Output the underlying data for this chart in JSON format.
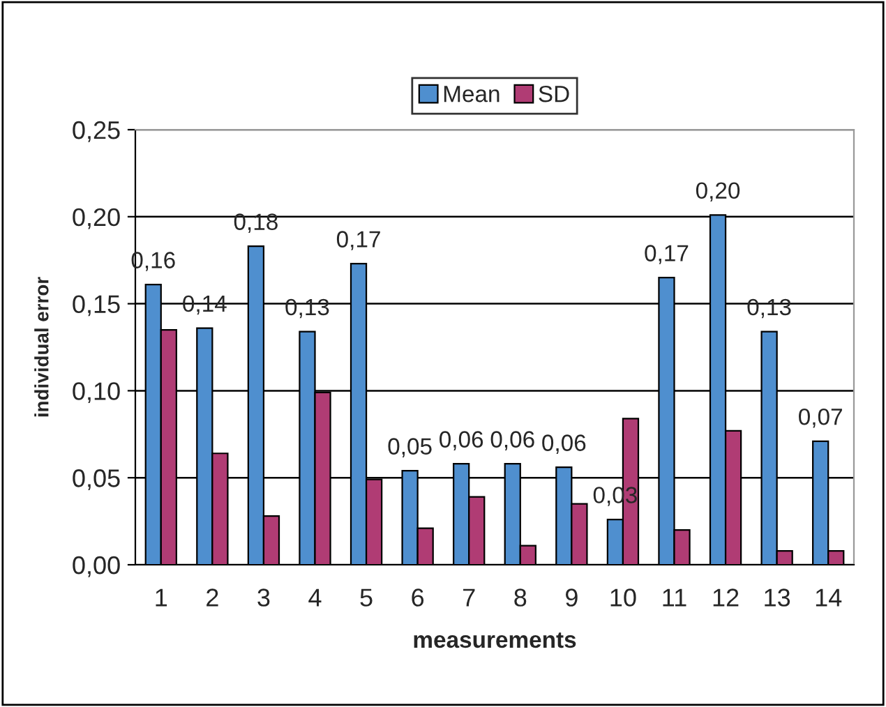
{
  "chart_data": {
    "type": "bar",
    "xlabel": "measurements",
    "ylabel": "individual error",
    "categories": [
      "1",
      "2",
      "3",
      "4",
      "5",
      "6",
      "7",
      "8",
      "9",
      "10",
      "11",
      "12",
      "13",
      "14"
    ],
    "series": [
      {
        "name": "Mean",
        "color": "#4f8fcf",
        "values": [
          0.161,
          0.136,
          0.183,
          0.134,
          0.173,
          0.054,
          0.058,
          0.058,
          0.056,
          0.026,
          0.165,
          0.201,
          0.134,
          0.071
        ],
        "value_labels": [
          "0,16",
          "0,14",
          "0,18",
          "0,13",
          "0,17",
          "0,05",
          "0,06",
          "0,06",
          "0,06",
          "0,03",
          "0,17",
          "0,20",
          "0,13",
          "0,07"
        ]
      },
      {
        "name": "SD",
        "color": "#b03c74",
        "values": [
          0.135,
          0.064,
          0.028,
          0.099,
          0.049,
          0.021,
          0.039,
          0.011,
          0.035,
          0.084,
          0.02,
          0.077,
          0.008,
          0.008
        ]
      }
    ],
    "ylim": [
      0,
      0.25
    ],
    "yticks": [
      {
        "value": 0,
        "label": "0,00"
      },
      {
        "value": 0.05,
        "label": "0,05"
      },
      {
        "value": 0.1,
        "label": "0,10"
      },
      {
        "value": 0.15,
        "label": "0,15"
      },
      {
        "value": 0.2,
        "label": "0,20"
      },
      {
        "value": 0.25,
        "label": "0,25"
      }
    ],
    "grid": "y",
    "legend": "top"
  }
}
